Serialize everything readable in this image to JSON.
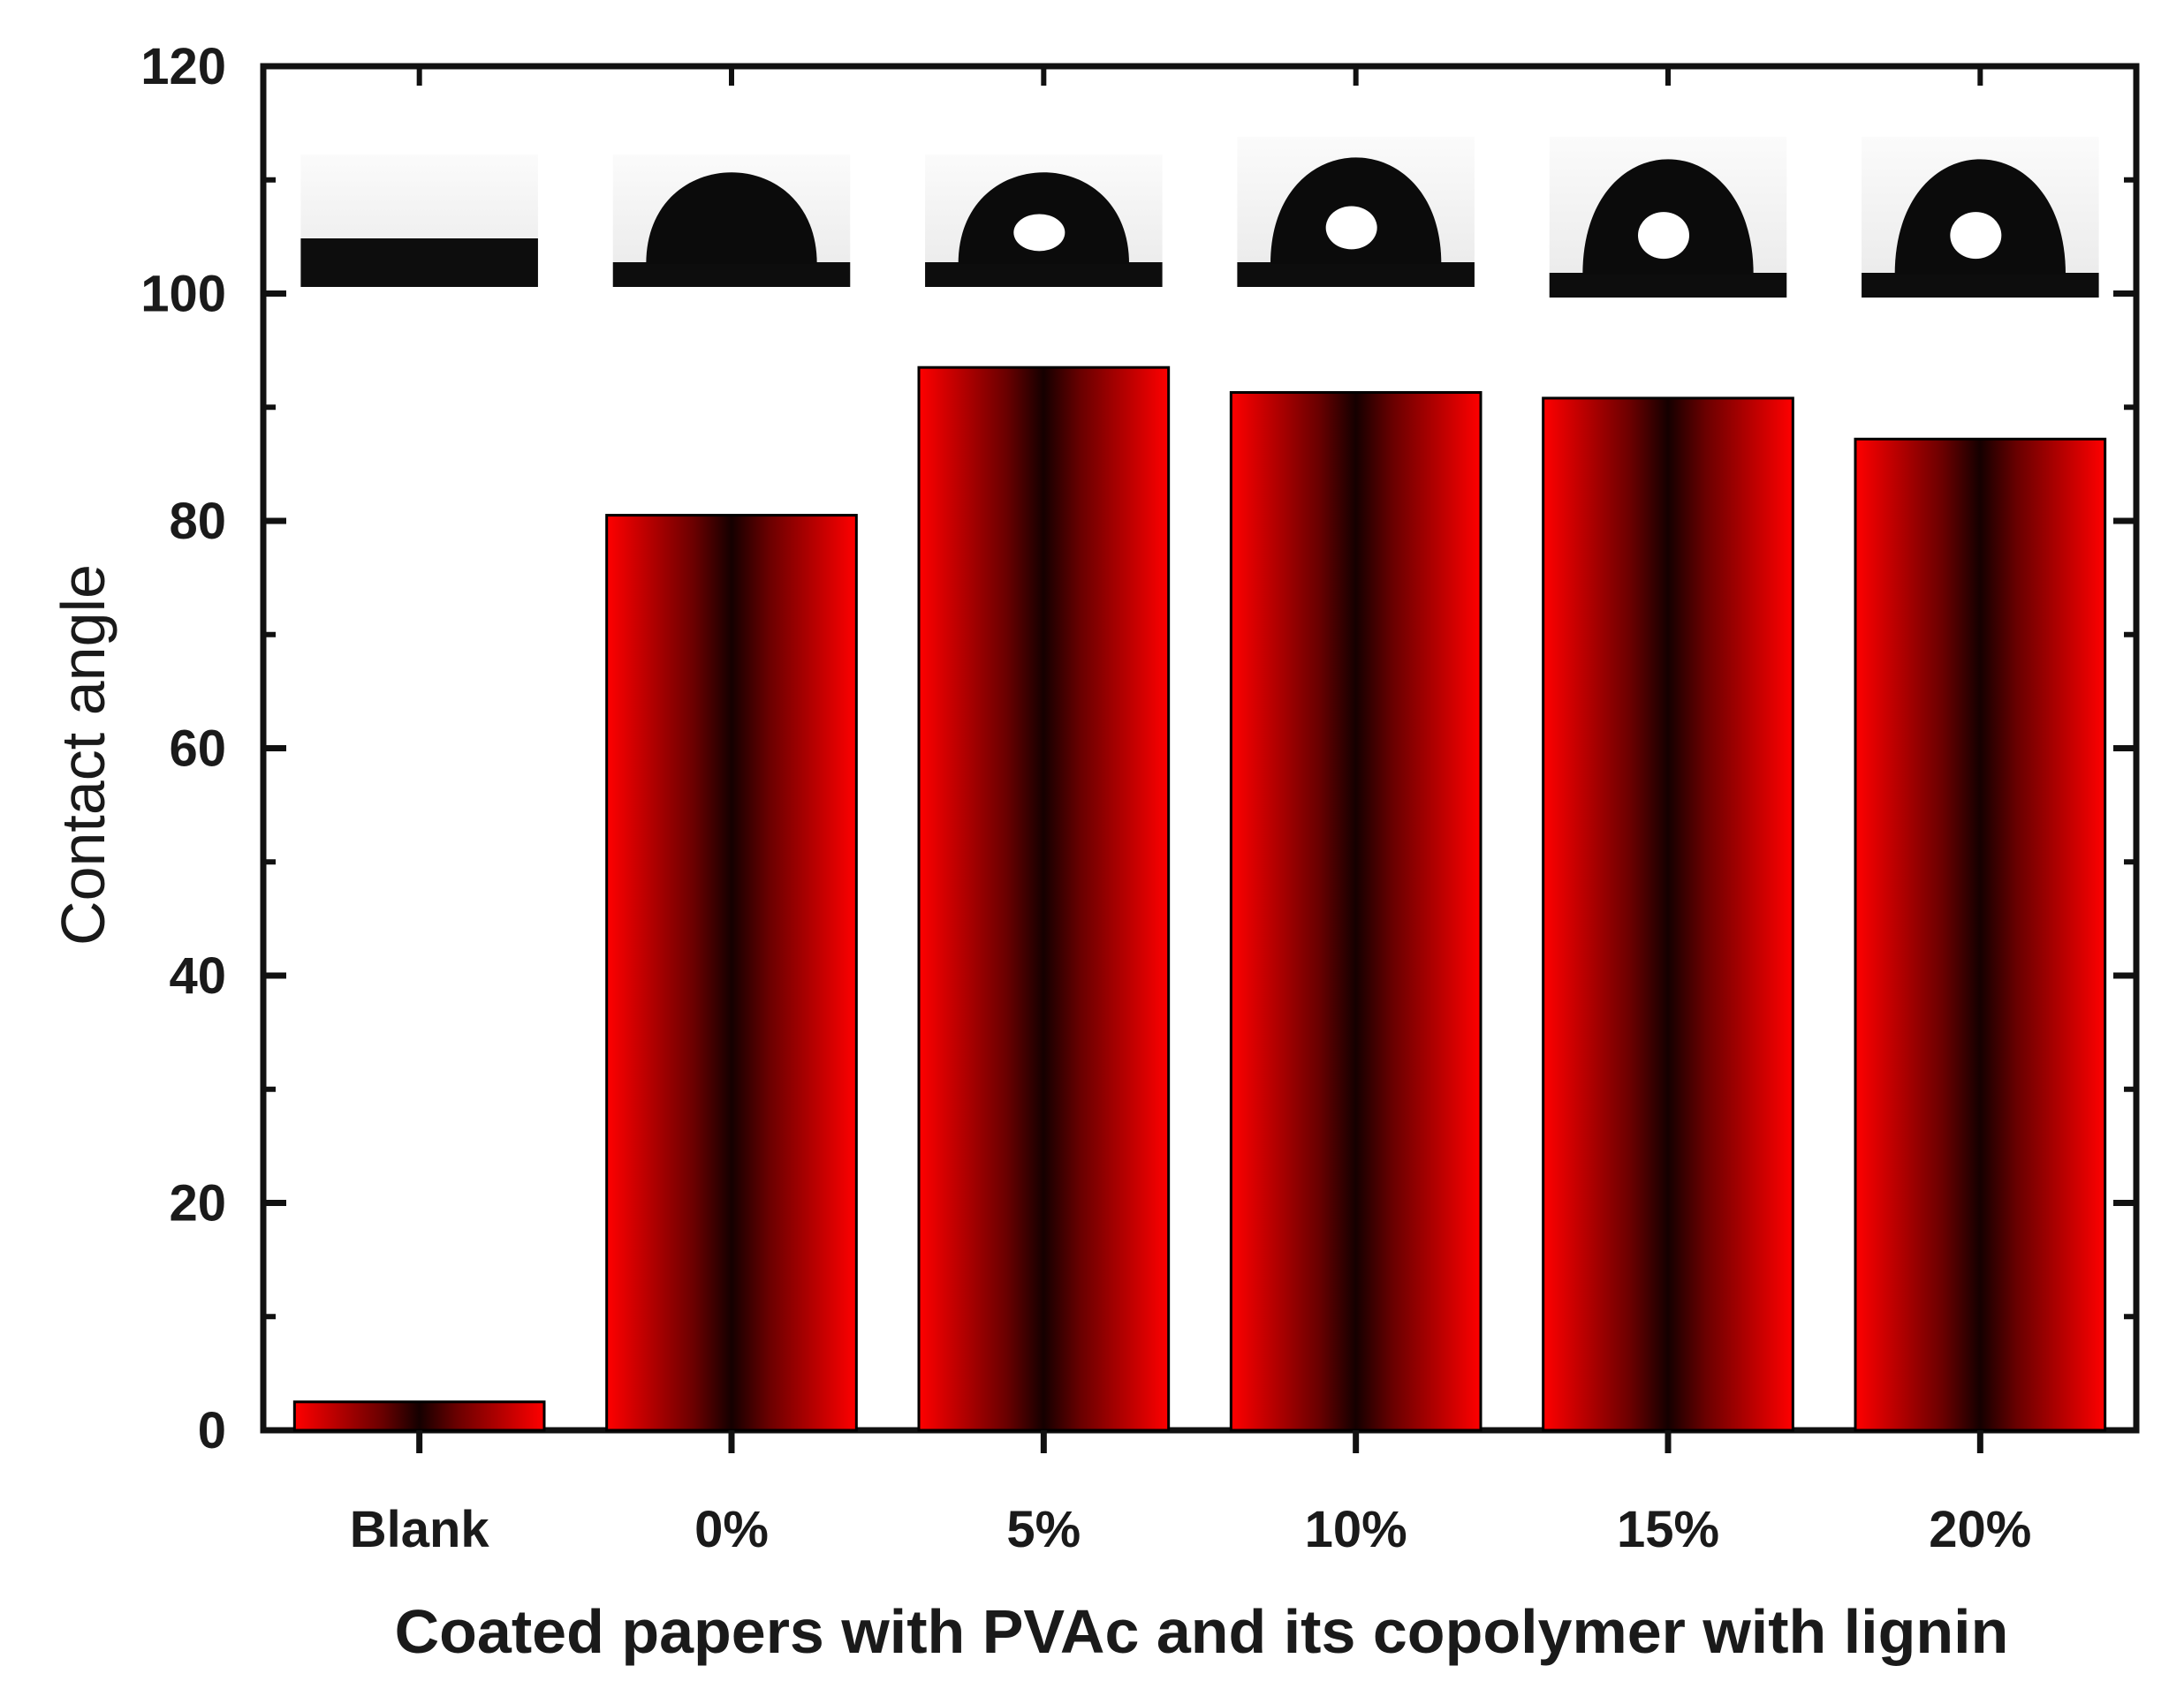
{
  "chart_data": {
    "type": "bar",
    "title": "",
    "xlabel": "Coated papers with PVAc and its copolymer with lignin",
    "ylabel": "Contact angle",
    "categories": [
      "Blank",
      "0%",
      "5%",
      "10%",
      "15%",
      "20%"
    ],
    "values": [
      2.5,
      80.5,
      93.5,
      91.3,
      90.8,
      87.2
    ],
    "ylim": [
      0,
      120
    ],
    "yticks": [
      "0",
      "20",
      "40",
      "60",
      "80",
      "100",
      "120"
    ],
    "grid": false,
    "legend": "none",
    "bar_colors": {
      "edge": "#ff0000",
      "center": "#150000",
      "outline": "#000000"
    },
    "inset_images": [
      {
        "category": "Blank",
        "icon": "flat-substrate-photo"
      },
      {
        "category": "0%",
        "icon": "water-droplet-photo"
      },
      {
        "category": "5%",
        "icon": "water-droplet-photo"
      },
      {
        "category": "10%",
        "icon": "water-droplet-photo"
      },
      {
        "category": "15%",
        "icon": "water-droplet-photo"
      },
      {
        "category": "20%",
        "icon": "water-droplet-photo"
      }
    ]
  }
}
